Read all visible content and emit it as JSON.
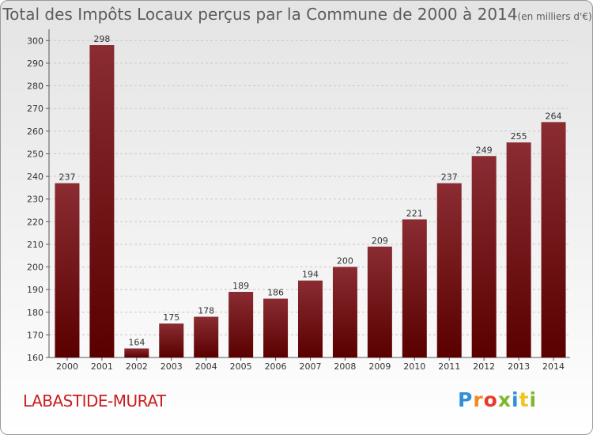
{
  "title": {
    "main": "Total des Impôts Locaux perçus par la Commune de 2000 à 2014",
    "sub": "(en milliers d'€)"
  },
  "commune": "LABASTIDE-MURAT",
  "logo": {
    "letters": [
      "P",
      "r",
      "o",
      "x",
      "i",
      "t",
      "i"
    ]
  },
  "colors": {
    "bar_top": "#8a2c32",
    "bar_bottom": "#5a0000",
    "commune": "#c81e1e"
  },
  "chart_data": {
    "type": "bar",
    "categories": [
      "2000",
      "2001",
      "2002",
      "2003",
      "2004",
      "2005",
      "2006",
      "2007",
      "2008",
      "2009",
      "2010",
      "2011",
      "2012",
      "2013",
      "2014"
    ],
    "values": [
      237,
      298,
      164,
      175,
      178,
      189,
      186,
      194,
      200,
      209,
      221,
      237,
      249,
      255,
      264
    ],
    "ylim": [
      160,
      305
    ],
    "yticks": [
      160,
      170,
      180,
      190,
      200,
      210,
      220,
      230,
      240,
      250,
      260,
      270,
      280,
      290,
      300
    ],
    "grid": true
  }
}
